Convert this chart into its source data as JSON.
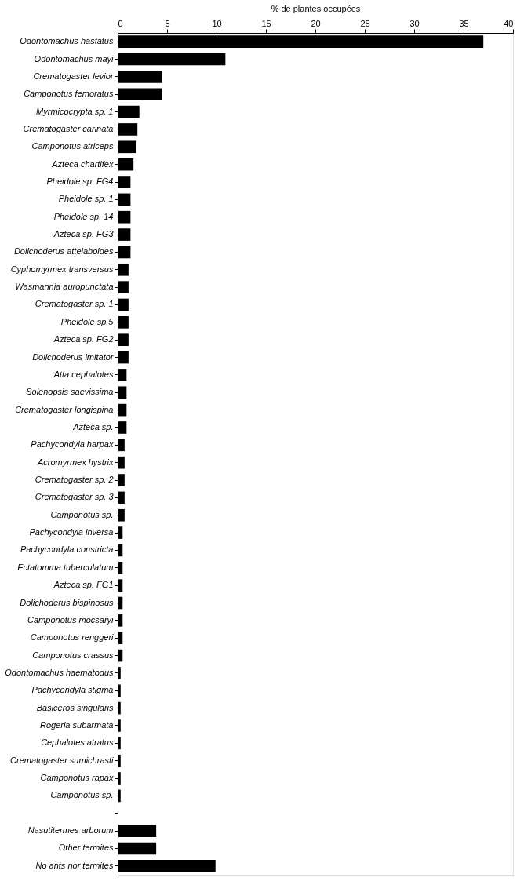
{
  "chart_data": {
    "type": "bar",
    "orientation": "horizontal",
    "xlabel": "% de plantes occupées",
    "categories": [
      "Odontomachus hastatus",
      "Odontomachus mayi",
      "Crematogaster levior",
      "Camponotus femoratus",
      "Myrmicocrypta sp. 1",
      "Crematogaster carinata",
      "Camponotus atriceps",
      "Azteca chartifex",
      "Pheidole sp. FG4",
      "Pheidole sp. 1",
      "Pheidole sp. 14",
      "Azteca sp. FG3",
      "Dolichoderus attelaboides",
      "Cyphomyrmex transversus",
      "Wasmannia auropunctata",
      "Crematogaster sp. 1",
      "Pheidole sp.5",
      "Azteca sp. FG2",
      "Dolichoderus imitator",
      "Atta cephalotes",
      "Solenopsis saevissima",
      "Crematogaster longispina",
      "Azteca sp.",
      "Pachycondyla harpax",
      "Acromyrmex hystrix",
      "Crematogaster sp. 2",
      "Crematogaster sp. 3",
      "Camponotus sp.",
      "Pachycondyla inversa",
      "Pachycondyla constricta",
      "Ectatomma tuberculatum",
      "Azteca sp. FG1",
      "Dolichoderus bispinosus",
      "Camponotus mocsaryi",
      "Camponotus renggeri",
      "Camponotus crassus",
      "Odontomachus haematodus",
      "Pachycondyla stigma",
      "Basiceros singularis",
      "Rogeria subarmata",
      "Cephalotes atratus",
      "Crematogaster sumichrasti",
      "Camponotus rapax",
      "Camponotus sp.",
      null,
      "Nasutitermes arborum ",
      "Other termites",
      "No ants nor termites"
    ],
    "values": [
      37,
      10.9,
      4.5,
      4.5,
      2.2,
      2.0,
      1.9,
      1.6,
      1.3,
      1.3,
      1.3,
      1.3,
      1.3,
      1.1,
      1.1,
      1.1,
      1.1,
      1.1,
      1.1,
      0.9,
      0.9,
      0.9,
      0.9,
      0.7,
      0.7,
      0.7,
      0.7,
      0.7,
      0.5,
      0.5,
      0.5,
      0.5,
      0.5,
      0.5,
      0.5,
      0.5,
      0.3,
      0.3,
      0.3,
      0.3,
      0.3,
      0.3,
      0.3,
      0.3,
      null,
      3.9,
      3.9,
      9.9
    ],
    "color": "#000000",
    "xlim": [
      0,
      40
    ],
    "xticks": [
      0,
      5,
      10,
      15,
      20,
      25,
      30,
      35,
      40
    ],
    "grid": false
  }
}
